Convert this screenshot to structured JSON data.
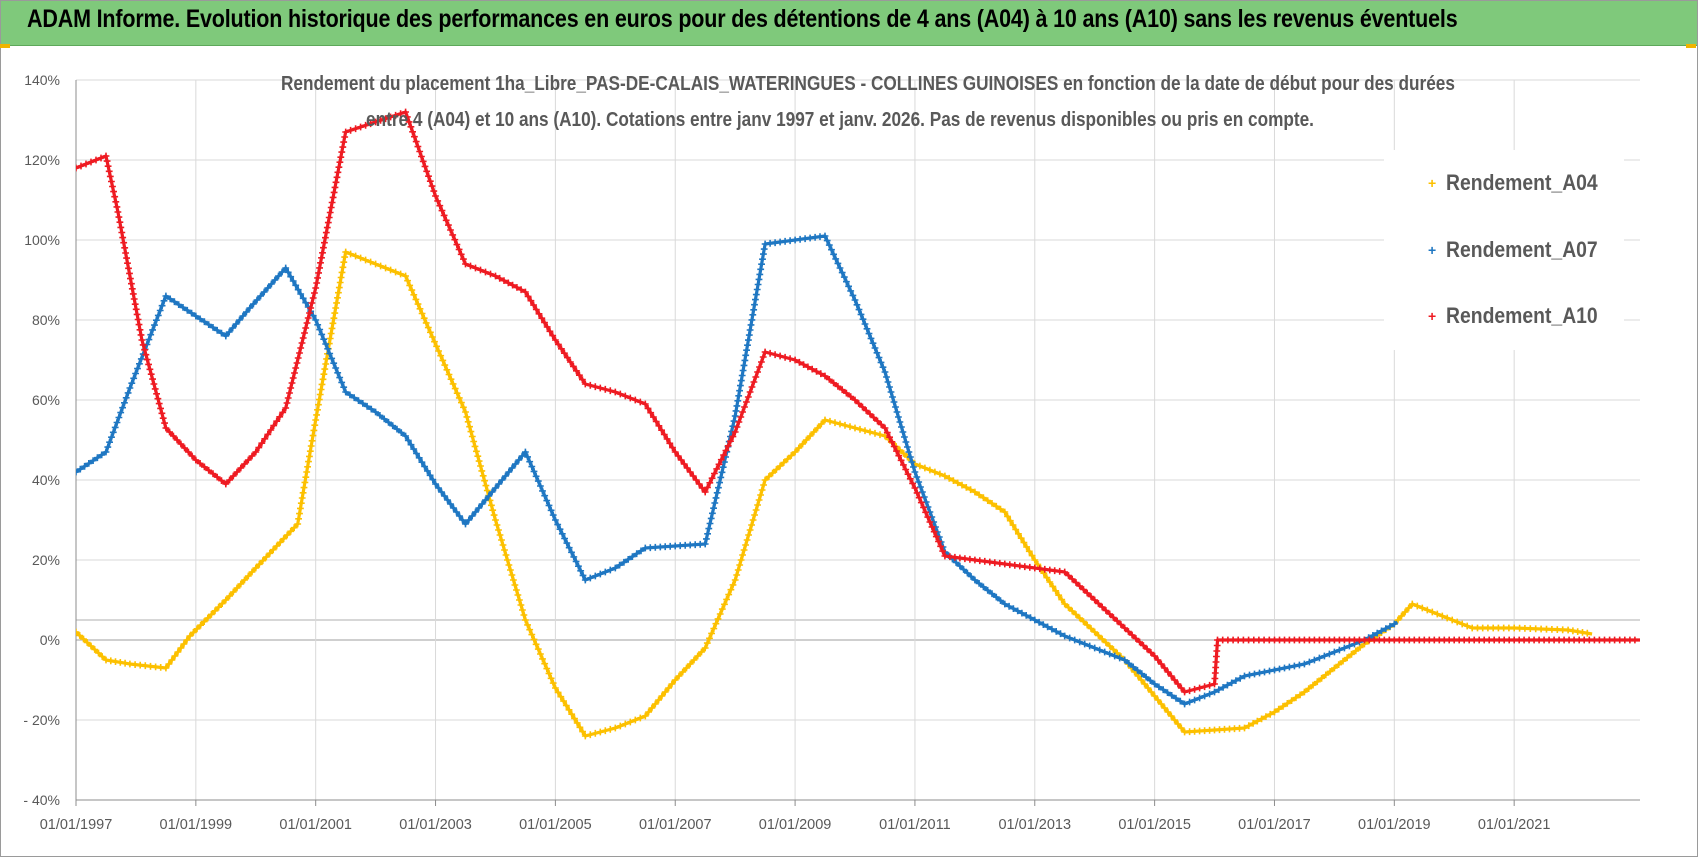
{
  "banner": {
    "title": "ADAM Informe. Evolution historique des performances en euros pour des détentions de 4 ans (A04) à 10 ans (A10) sans les revenus éventuels"
  },
  "colors": {
    "banner_bg": "#7fc97b",
    "a04": "#fcc000",
    "a07": "#1f77c2",
    "a10": "#ee1b22",
    "grid": "#d9d9d9",
    "text": "#595959"
  },
  "chart_data": {
    "type": "line",
    "title_lines": [
      "Rendement du placement 1ha_Libre_PAS-DE-CALAIS_WATERINGUES - COLLINES GUINOISES en fonction de la date de début pour des durées",
      "entre 4 (A04) et 10 ans (A10).  Cotations entre janv 1997 et janv. 2026. Pas de revenus disponibles ou pris en compte."
    ],
    "xlabel": "",
    "ylabel": "",
    "x_range": [
      1997.0,
      2023.1
    ],
    "ylim": [
      -40,
      140
    ],
    "y_ticks": [
      -40,
      -20,
      0,
      20,
      40,
      60,
      80,
      100,
      120,
      140
    ],
    "y_tick_labels": [
      "- 40%",
      "- 20%",
      "0%",
      "20%",
      "40%",
      "60%",
      "80%",
      "100%",
      "120%",
      "140%"
    ],
    "x_ticks": [
      1997,
      1999,
      2001,
      2003,
      2005,
      2007,
      2009,
      2011,
      2013,
      2015,
      2017,
      2019,
      2021
    ],
    "x_tick_labels": [
      "01/01/1997",
      "01/01/1999",
      "01/01/2001",
      "01/01/2003",
      "01/01/2005",
      "01/01/2007",
      "01/01/2009",
      "01/01/2011",
      "01/01/2013",
      "01/01/2015",
      "01/01/2017",
      "01/01/2019",
      "01/01/2021"
    ],
    "grid": true,
    "legend_position": "right",
    "series": [
      {
        "name": "Rendement_A04",
        "color": "#fcc000",
        "points": [
          [
            1997.0,
            2
          ],
          [
            1997.5,
            -5
          ],
          [
            1997.9,
            -6
          ],
          [
            1998.5,
            -7
          ],
          [
            1998.9,
            1
          ],
          [
            1999.5,
            10
          ],
          [
            2000.0,
            18
          ],
          [
            2000.7,
            29
          ],
          [
            2001.0,
            55
          ],
          [
            2001.5,
            97
          ],
          [
            2002.5,
            91
          ],
          [
            2003.5,
            57
          ],
          [
            2004.0,
            30
          ],
          [
            2004.5,
            5
          ],
          [
            2005.0,
            -12
          ],
          [
            2005.5,
            -24
          ],
          [
            2006.0,
            -22
          ],
          [
            2006.5,
            -19
          ],
          [
            2007.0,
            -10
          ],
          [
            2007.5,
            -2
          ],
          [
            2008.0,
            15
          ],
          [
            2008.5,
            40
          ],
          [
            2009.0,
            47
          ],
          [
            2009.5,
            55
          ],
          [
            2010.0,
            53
          ],
          [
            2010.5,
            51
          ],
          [
            2011.0,
            44
          ],
          [
            2011.5,
            41
          ],
          [
            2012.0,
            37
          ],
          [
            2012.5,
            32
          ],
          [
            2013.0,
            20
          ],
          [
            2013.5,
            9
          ],
          [
            2014.0,
            2
          ],
          [
            2014.5,
            -5
          ],
          [
            2015.0,
            -14
          ],
          [
            2015.5,
            -23
          ],
          [
            2016.0,
            -22.5
          ],
          [
            2016.5,
            -22
          ],
          [
            2017.0,
            -18
          ],
          [
            2017.5,
            -13
          ],
          [
            2018.0,
            -7
          ],
          [
            2018.5,
            -1
          ],
          [
            2019.0,
            4
          ],
          [
            2019.3,
            9
          ],
          [
            2019.8,
            6
          ],
          [
            2020.3,
            3
          ],
          [
            2021.0,
            3
          ],
          [
            2021.9,
            2.5
          ],
          [
            2022.3,
            1.5
          ]
        ]
      },
      {
        "name": "Rendement_A07",
        "color": "#1f77c2",
        "points": [
          [
            1997.0,
            42
          ],
          [
            1997.5,
            47
          ],
          [
            1997.9,
            63
          ],
          [
            1998.5,
            86
          ],
          [
            1999.0,
            81
          ],
          [
            1999.5,
            76
          ],
          [
            1999.9,
            83
          ],
          [
            2000.5,
            93
          ],
          [
            2001.0,
            80
          ],
          [
            2001.5,
            62
          ],
          [
            2002.0,
            57
          ],
          [
            2002.5,
            51
          ],
          [
            2003.0,
            39
          ],
          [
            2003.5,
            29
          ],
          [
            2004.0,
            38
          ],
          [
            2004.5,
            47
          ],
          [
            2005.0,
            30
          ],
          [
            2005.5,
            15
          ],
          [
            2006.0,
            18
          ],
          [
            2006.5,
            23
          ],
          [
            2007.0,
            23.5
          ],
          [
            2007.5,
            24
          ],
          [
            2008.0,
            56
          ],
          [
            2008.5,
            99
          ],
          [
            2009.0,
            100
          ],
          [
            2009.5,
            101
          ],
          [
            2010.0,
            85
          ],
          [
            2010.5,
            67
          ],
          [
            2011.0,
            42
          ],
          [
            2011.5,
            22
          ],
          [
            2012.0,
            15
          ],
          [
            2012.5,
            9
          ],
          [
            2013.0,
            5
          ],
          [
            2013.5,
            1
          ],
          [
            2014.0,
            -2
          ],
          [
            2014.5,
            -5
          ],
          [
            2015.0,
            -11
          ],
          [
            2015.5,
            -16
          ],
          [
            2016.0,
            -13
          ],
          [
            2016.5,
            -9
          ],
          [
            2017.0,
            -7.5
          ],
          [
            2017.5,
            -6
          ],
          [
            2018.0,
            -3
          ],
          [
            2018.5,
            0
          ],
          [
            2019.0,
            4
          ],
          [
            2019.05,
            4.5
          ]
        ]
      },
      {
        "name": "Rendement_A10",
        "color": "#ee1b22",
        "points": [
          [
            1997.0,
            118
          ],
          [
            1997.5,
            121
          ],
          [
            1997.7,
            107
          ],
          [
            1998.1,
            75
          ],
          [
            1998.5,
            53
          ],
          [
            1999.0,
            45
          ],
          [
            1999.5,
            39
          ],
          [
            2000.0,
            47
          ],
          [
            2000.5,
            58
          ],
          [
            2001.0,
            88
          ],
          [
            2001.5,
            127
          ],
          [
            2002.5,
            132
          ],
          [
            2003.0,
            111
          ],
          [
            2003.5,
            94
          ],
          [
            2004.0,
            91
          ],
          [
            2004.5,
            87
          ],
          [
            2005.0,
            75
          ],
          [
            2005.5,
            64
          ],
          [
            2006.0,
            62
          ],
          [
            2006.5,
            59
          ],
          [
            2007.0,
            47
          ],
          [
            2007.5,
            37
          ],
          [
            2008.0,
            52
          ],
          [
            2008.5,
            72
          ],
          [
            2009.0,
            70
          ],
          [
            2009.5,
            66
          ],
          [
            2010.0,
            60
          ],
          [
            2010.5,
            53
          ],
          [
            2011.0,
            38
          ],
          [
            2011.5,
            21
          ],
          [
            2012.0,
            20
          ],
          [
            2012.5,
            19
          ],
          [
            2013.0,
            18
          ],
          [
            2013.5,
            17
          ],
          [
            2014.0,
            10
          ],
          [
            2014.5,
            3
          ],
          [
            2015.0,
            -4
          ],
          [
            2015.5,
            -13
          ],
          [
            2016.0,
            -11
          ],
          [
            2016.05,
            0
          ],
          [
            2017.0,
            0
          ],
          [
            2018.0,
            0
          ],
          [
            2019.0,
            0
          ],
          [
            2020.0,
            0
          ],
          [
            2021.0,
            0
          ],
          [
            2022.0,
            0
          ],
          [
            2023.1,
            0
          ]
        ]
      }
    ]
  }
}
